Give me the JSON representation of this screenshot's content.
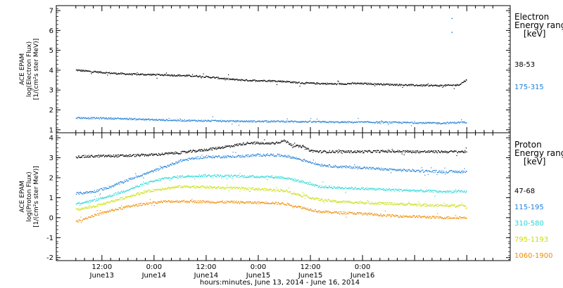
{
  "chart_data": [
    {
      "type": "scatter",
      "panel": "electron",
      "ylabel_lines": [
        "ACE EPAM",
        "log(Electron Flux)",
        "[1/(cm²s ster MeV)]"
      ],
      "ylim": [
        0.85,
        7.25
      ],
      "yticks": [
        1,
        2,
        3,
        4,
        5,
        6,
        7
      ],
      "legend_title": [
        "Electron",
        "Energy range",
        "[keV]"
      ],
      "series": [
        {
          "name": "38-53",
          "color": "#000000",
          "x": [
            0,
            4,
            8,
            12,
            16,
            20,
            24,
            28,
            32,
            36,
            40,
            44,
            48,
            52,
            56,
            60,
            64,
            68,
            72,
            76,
            80,
            84,
            88,
            90
          ],
          "y": [
            4.0,
            3.92,
            3.85,
            3.8,
            3.78,
            3.76,
            3.73,
            3.7,
            3.62,
            3.53,
            3.48,
            3.47,
            3.43,
            3.35,
            3.33,
            3.3,
            3.33,
            3.31,
            3.28,
            3.25,
            3.23,
            3.22,
            3.25,
            3.52
          ]
        },
        {
          "name": "175-315",
          "color": "#1f7fd8",
          "x": [
            0,
            6,
            12,
            18,
            24,
            30,
            36,
            42,
            48,
            54,
            60,
            66,
            72,
            78,
            84,
            90
          ],
          "y": [
            1.6,
            1.58,
            1.55,
            1.5,
            1.47,
            1.45,
            1.43,
            1.42,
            1.42,
            1.4,
            1.38,
            1.38,
            1.37,
            1.35,
            1.33,
            1.38
          ]
        }
      ],
      "outliers": [
        {
          "x": 86.5,
          "y": 6.6
        },
        {
          "x": 86.5,
          "y": 5.9
        }
      ]
    },
    {
      "type": "scatter",
      "panel": "proton",
      "ylabel_lines": [
        "ACE EPAM",
        "log(Proton Flux)",
        "[1/(cm²s ster MeV)]"
      ],
      "ylim": [
        -2.15,
        4.25
      ],
      "yticks": [
        -2,
        -1,
        0,
        1,
        2,
        3,
        4
      ],
      "legend_title": [
        "Proton",
        "Energy range",
        "[keV]"
      ],
      "series": [
        {
          "name": "47-68",
          "color": "#000000",
          "x": [
            0,
            6,
            12,
            18,
            24,
            30,
            36,
            40,
            44,
            46,
            48,
            50,
            52,
            54,
            56,
            60,
            66,
            72,
            78,
            84,
            90
          ],
          "y": [
            3.05,
            3.08,
            3.1,
            3.15,
            3.25,
            3.4,
            3.6,
            3.75,
            3.7,
            3.75,
            3.85,
            3.6,
            3.55,
            3.35,
            3.3,
            3.3,
            3.3,
            3.32,
            3.3,
            3.3,
            3.3
          ]
        },
        {
          "name": "115-195",
          "color": "#1f7fd8",
          "x": [
            0,
            4,
            8,
            12,
            16,
            20,
            24,
            28,
            32,
            36,
            40,
            44,
            48,
            52,
            56,
            60,
            66,
            72,
            78,
            84,
            90
          ],
          "y": [
            1.2,
            1.3,
            1.55,
            1.9,
            2.2,
            2.5,
            2.85,
            3.0,
            3.05,
            3.05,
            3.1,
            3.15,
            3.1,
            2.9,
            2.65,
            2.55,
            2.5,
            2.4,
            2.35,
            2.3,
            2.3
          ]
        },
        {
          "name": "310-580",
          "color": "#25d6d6",
          "x": [
            0,
            4,
            8,
            12,
            16,
            20,
            24,
            28,
            32,
            36,
            40,
            44,
            48,
            52,
            56,
            60,
            66,
            72,
            78,
            84,
            90
          ],
          "y": [
            0.7,
            0.85,
            1.1,
            1.4,
            1.7,
            1.95,
            2.05,
            2.1,
            2.1,
            2.08,
            2.05,
            2.05,
            2.0,
            1.8,
            1.55,
            1.5,
            1.45,
            1.4,
            1.35,
            1.3,
            1.3
          ]
        },
        {
          "name": "795-1193",
          "color": "#c8de00",
          "x": [
            0,
            4,
            8,
            12,
            16,
            20,
            24,
            28,
            32,
            36,
            40,
            44,
            48,
            52,
            56,
            60,
            66,
            72,
            78,
            84,
            90
          ],
          "y": [
            0.4,
            0.55,
            0.8,
            1.05,
            1.3,
            1.45,
            1.55,
            1.55,
            1.5,
            1.48,
            1.45,
            1.4,
            1.35,
            1.1,
            0.9,
            0.8,
            0.75,
            0.7,
            0.65,
            0.6,
            0.6
          ]
        },
        {
          "name": "1060-1900",
          "color": "#f08c00",
          "x": [
            0,
            4,
            8,
            12,
            16,
            20,
            24,
            28,
            32,
            36,
            40,
            44,
            48,
            52,
            56,
            60,
            66,
            72,
            78,
            84,
            90
          ],
          "y": [
            -0.2,
            0.1,
            0.35,
            0.55,
            0.7,
            0.8,
            0.82,
            0.8,
            0.78,
            0.78,
            0.75,
            0.75,
            0.7,
            0.5,
            0.3,
            0.25,
            0.2,
            0.1,
            0.05,
            0.0,
            0.0
          ]
        }
      ]
    }
  ],
  "x_axis": {
    "xlim": [
      -4.5,
      100
    ],
    "major_ticks": [
      6,
      18,
      30,
      42,
      54,
      66,
      78,
      90
    ],
    "labels": [
      {
        "x": 6,
        "time": "12:00",
        "date": "June13"
      },
      {
        "x": 18,
        "time": "0:00",
        "date": "June14"
      },
      {
        "x": 30,
        "time": "12:00",
        "date": "June14"
      },
      {
        "x": 42,
        "time": "0:00",
        "date": "June15"
      },
      {
        "x": 54,
        "time": "12:00",
        "date": "June15"
      },
      {
        "x": 66,
        "time": "0:00",
        "date": "June16"
      }
    ],
    "title": "hours:minutes, June 13, 2014 - June 16, 2014"
  }
}
